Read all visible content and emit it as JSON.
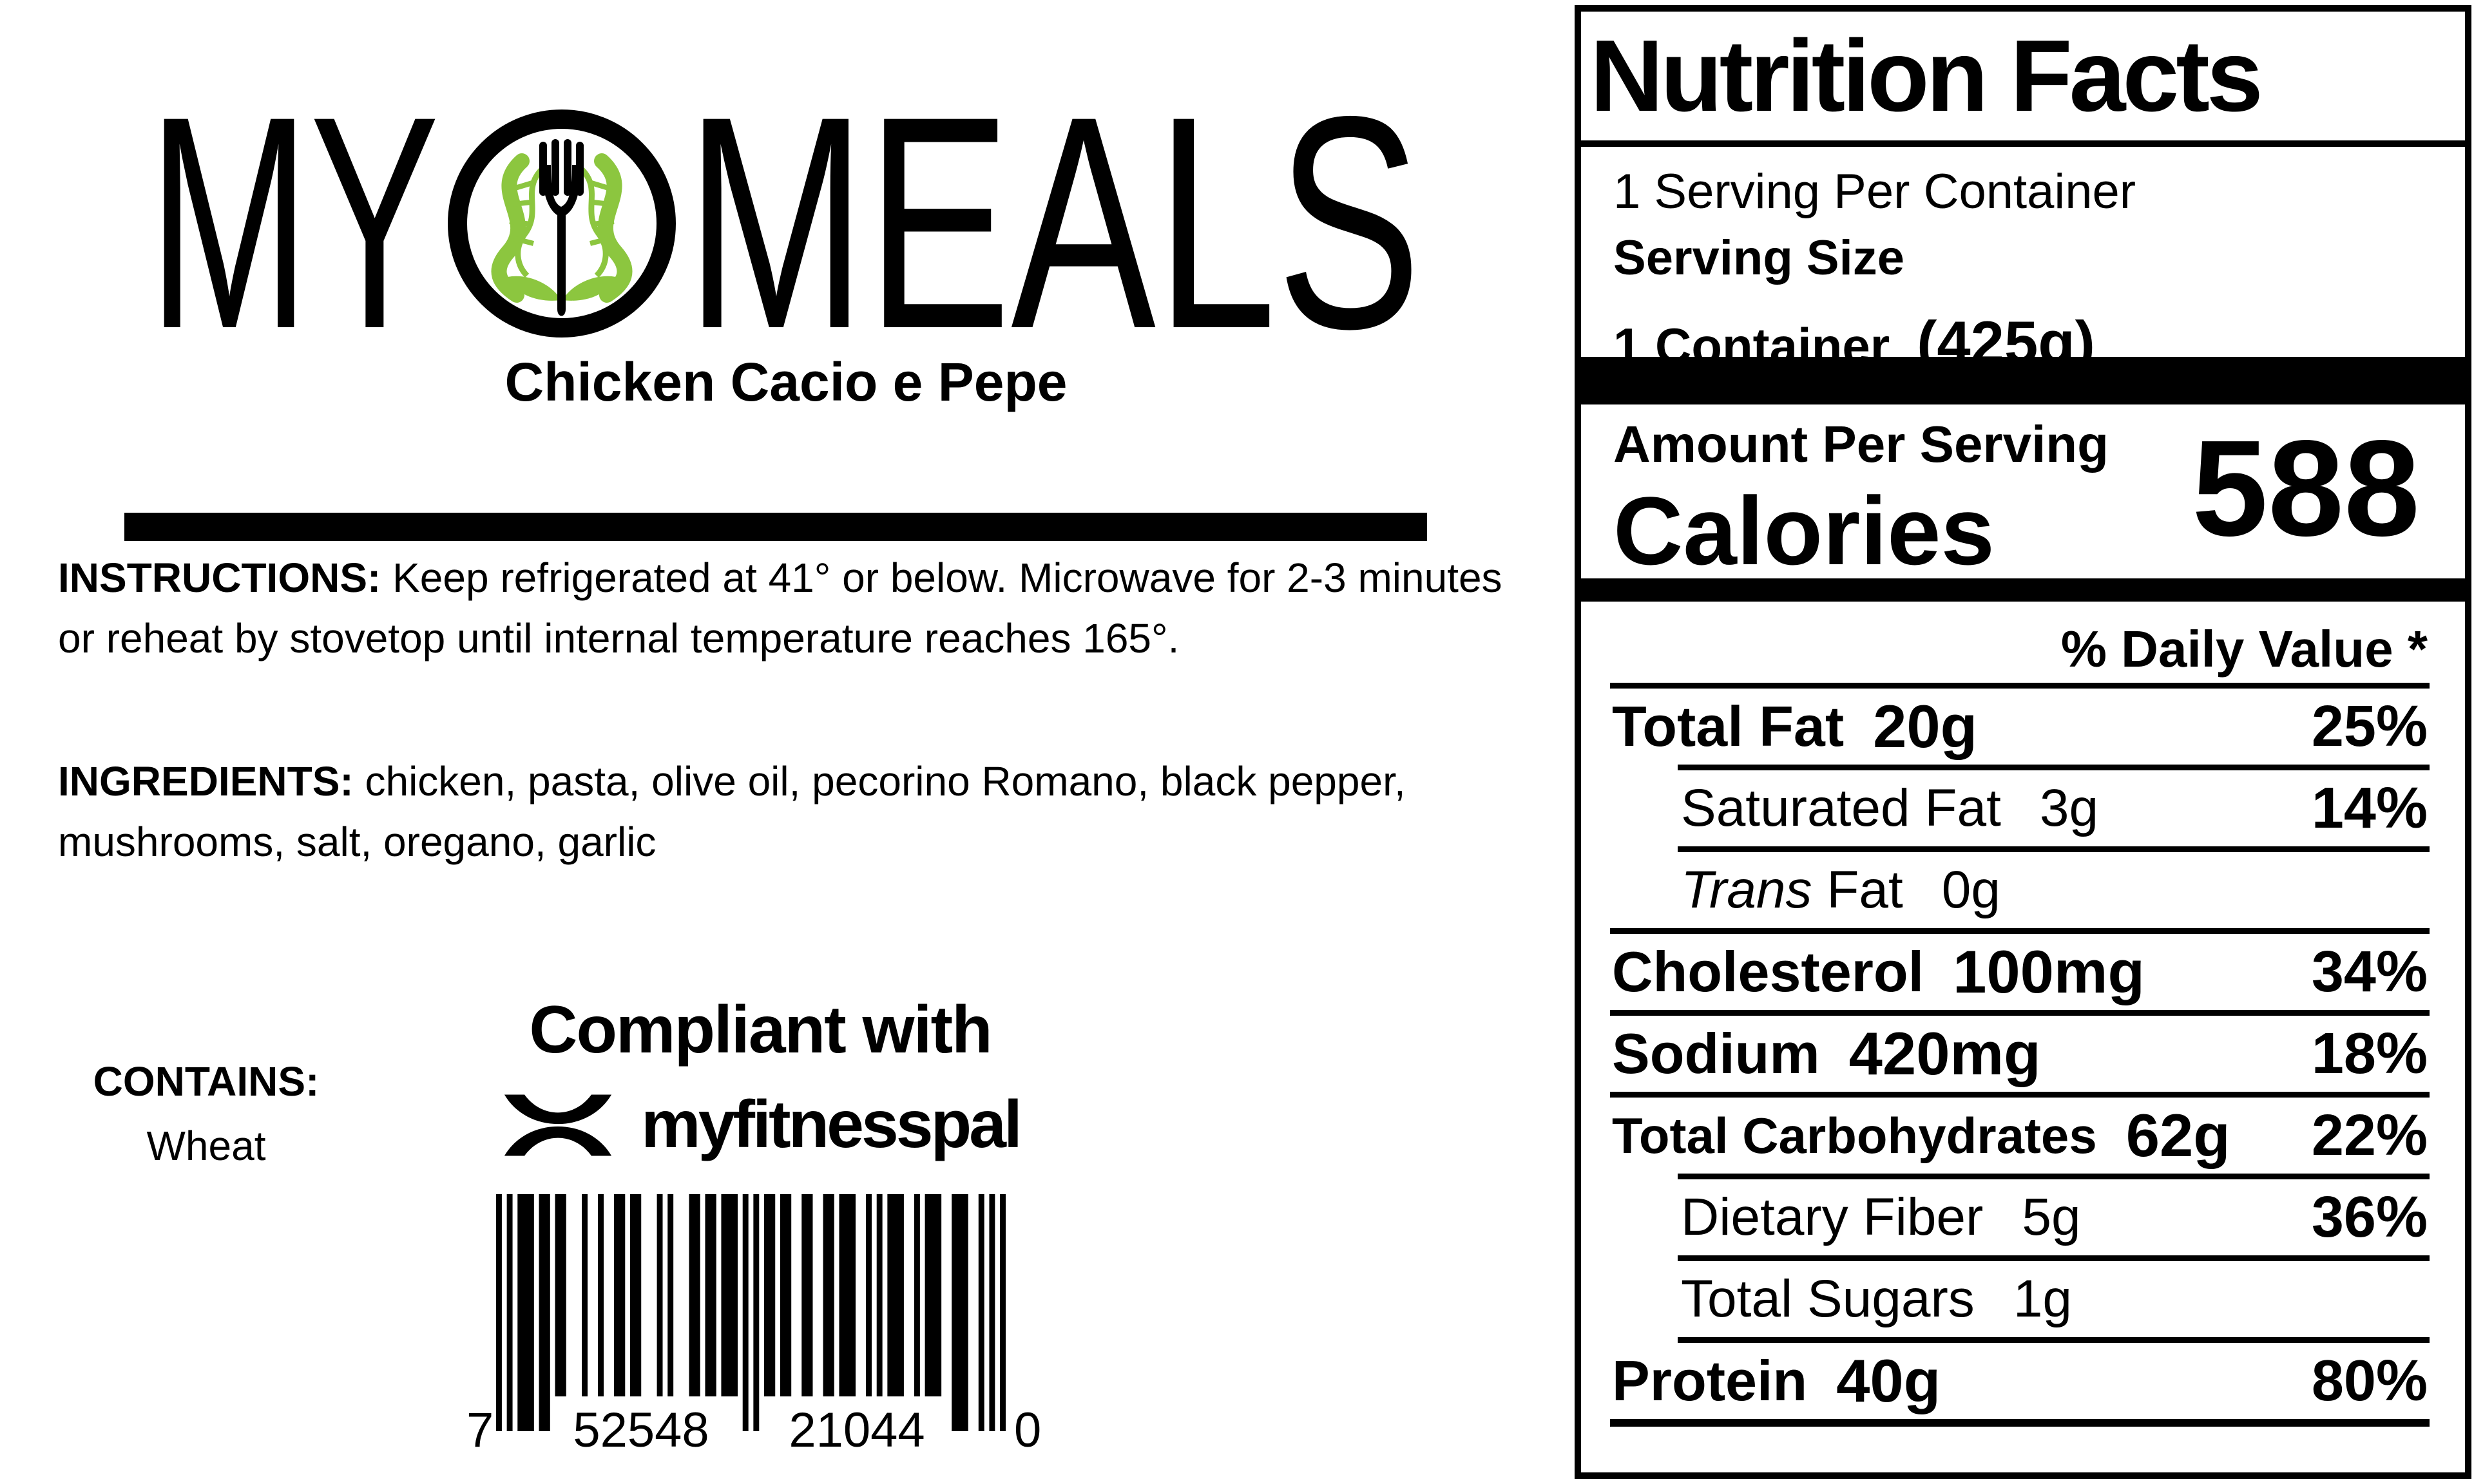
{
  "brand": {
    "logo_text_left": "MY",
    "logo_text_right": "MEALS",
    "product_name": "Chicken Cacio e Pepe"
  },
  "instructions": {
    "label": "INSTRUCTIONS:",
    "text": " Keep refrigerated at 41° or below. Microwave for 2-3 minutes or reheat by stovetop until internal temperature reaches 165°."
  },
  "ingredients": {
    "label": "INGREDIENTS:",
    "text": " chicken, pasta, olive oil, pecorino Romano, black pepper, mushrooms, salt, oregano, garlic"
  },
  "contains": {
    "label": "CONTAINS:",
    "value": "Wheat"
  },
  "compliance": {
    "line1": "Compliant with",
    "brand": "myfitnesspal"
  },
  "barcode": {
    "digits": "752548210440",
    "left_digit": "7",
    "group1": "52548",
    "group2": "21044",
    "right_digit": "0"
  },
  "colors": {
    "dna_green": "#8CC63F",
    "ink": "#000000"
  },
  "nutrition": {
    "title": "Nutrition Facts",
    "servings_per_container": "1 Serving Per Container",
    "serving_size_label": "Serving Size",
    "serving_size_value": "1 Container",
    "serving_size_weight": "(425g)",
    "amount_per_serving": "Amount Per Serving",
    "calories_label": "Calories",
    "calories_value": "588",
    "daily_value_header": "% Daily Value *",
    "rows": [
      {
        "label": "Total Fat",
        "amount": "20g",
        "dv": "25%"
      },
      {
        "label": "Saturated Fat",
        "amount": "3g",
        "dv": "14%"
      },
      {
        "label_italic": "Trans",
        "label": " Fat",
        "amount": "0g",
        "dv": ""
      },
      {
        "label": "Cholesterol",
        "amount": "100mg",
        "dv": "34%"
      },
      {
        "label": "Sodium",
        "amount": "420mg",
        "dv": "18%"
      },
      {
        "label": "Total Carbohydrates",
        "amount": "62g",
        "dv": "22%"
      },
      {
        "label": "Dietary Fiber",
        "amount": "5g",
        "dv": "36%"
      },
      {
        "label": "Total Sugars",
        "amount": "1g",
        "dv": ""
      },
      {
        "label": "Protein",
        "amount": "40g",
        "dv": "80%"
      }
    ]
  }
}
